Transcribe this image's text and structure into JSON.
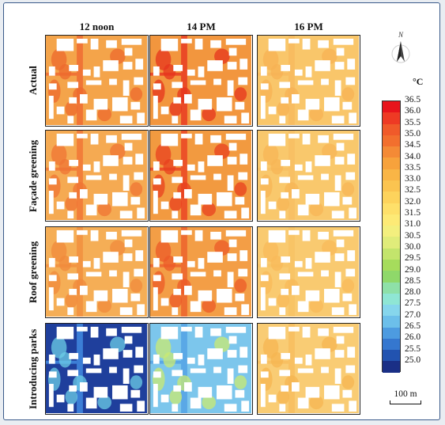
{
  "columns": [
    "12 noon",
    "14 PM",
    "16 PM"
  ],
  "rows": [
    "Actual",
    "Façade greening",
    "Roof greening",
    "Introducing parks"
  ],
  "legend": {
    "unit": "°C",
    "labels": [
      "36.5",
      "36.0",
      "35.5",
      "35.0",
      "34.5",
      "34.0",
      "33.5",
      "33.0",
      "32.5",
      "32.0",
      "31.5",
      "31.0",
      "30.5",
      "30.0",
      "29.5",
      "29.0",
      "28.5",
      "28.0",
      "27.5",
      "27.0",
      "26.5",
      "26.0",
      "25.5",
      "25.0"
    ],
    "colors": [
      "#e8141c",
      "#ee3a24",
      "#f05a2a",
      "#f26f2e",
      "#f48a36",
      "#f7a23c",
      "#f9b546",
      "#fbc450",
      "#fdd35c",
      "#fee06a",
      "#fdea76",
      "#f3ef7e",
      "#e0ec7a",
      "#c3e46c",
      "#a6dc5c",
      "#8fd86a",
      "#8ee0a8",
      "#8fe6d4",
      "#86d6ec",
      "#6cbfea",
      "#4d9be0",
      "#3577cf",
      "#2253b0",
      "#1a2f86"
    ]
  },
  "north_label": "N",
  "scale_label": "100 m",
  "panel_palettes": [
    [
      {
        "base": "#f4a44a",
        "hot": "#ee6a2e",
        "edge": "#f07436"
      },
      {
        "base": "#f2963e",
        "hot": "#e6341e",
        "edge": "#ea4a26"
      },
      {
        "base": "#f9c66a",
        "hot": "#f7b254",
        "edge": "#f8bc60"
      }
    ],
    [
      {
        "base": "#f5aa52",
        "hot": "#ef7434",
        "edge": "#f27e3a"
      },
      {
        "base": "#f29a40",
        "hot": "#e8401f",
        "edge": "#ec5228"
      },
      {
        "base": "#f9c86c",
        "hot": "#f7b656",
        "edge": "#f8c064"
      }
    ],
    [
      {
        "base": "#f5ae56",
        "hot": "#f08a3c",
        "edge": "#f29442"
      },
      {
        "base": "#f39e46",
        "hot": "#ec5a28",
        "edge": "#ee6c30"
      },
      {
        "base": "#f9ca70",
        "hot": "#f8ba5a",
        "edge": "#f8c466"
      }
    ],
    [
      {
        "base": "#1f3f9c",
        "hot": "#6ccde6",
        "edge": "#3c7ed6"
      },
      {
        "base": "#7cc6ec",
        "hot": "#c9ea72",
        "edge": "#5aa8e6"
      },
      {
        "base": "#f9cc74",
        "hot": "#f6b652",
        "edge": "#f8c062"
      }
    ]
  ]
}
